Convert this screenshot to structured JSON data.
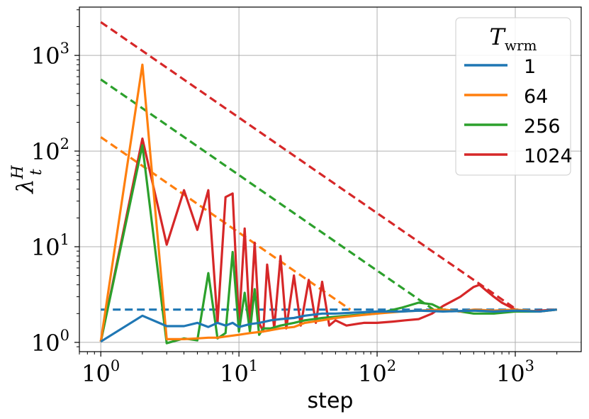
{
  "chart_data": {
    "type": "line",
    "xlabel": "step",
    "ylabel": "λ",
    "ylabel_sup": "H",
    "ylabel_sub": "t",
    "xscale": "log",
    "yscale": "log",
    "xlim": [
      0.7,
      3000
    ],
    "ylim": [
      0.8,
      3200
    ],
    "grid": true,
    "x_ticks": [
      {
        "base": "10",
        "exp": "0",
        "value": 1
      },
      {
        "base": "10",
        "exp": "1",
        "value": 10
      },
      {
        "base": "10",
        "exp": "2",
        "value": 100
      },
      {
        "base": "10",
        "exp": "3",
        "value": 1000
      }
    ],
    "y_ticks": [
      {
        "base": "10",
        "exp": "0",
        "value": 1
      },
      {
        "base": "10",
        "exp": "1",
        "value": 10
      },
      {
        "base": "10",
        "exp": "2",
        "value": 100
      },
      {
        "base": "10",
        "exp": "3",
        "value": 1000
      }
    ],
    "legend": {
      "title_main": "T",
      "title_sub": "wrm",
      "placement": "top-right"
    },
    "series": [
      {
        "name": "1",
        "color": "#1f77b4",
        "dashed": {
          "x": [
            1,
            2000
          ],
          "y": [
            2.2,
            2.2
          ]
        },
        "solid": {
          "x": [
            1,
            2,
            3,
            4,
            5,
            6,
            7,
            8,
            9,
            10,
            12,
            14,
            17,
            20,
            25,
            30,
            40,
            50,
            70,
            100,
            150,
            200,
            300,
            500,
            700,
            1000,
            1500,
            2000
          ],
          "y": [
            1.02,
            1.9,
            1.48,
            1.48,
            1.6,
            1.45,
            1.6,
            1.5,
            1.6,
            1.45,
            1.55,
            1.6,
            1.7,
            1.75,
            1.8,
            1.9,
            2.0,
            2.0,
            2.05,
            2.1,
            2.1,
            2.15,
            2.1,
            2.15,
            2.1,
            2.15,
            2.1,
            2.2
          ]
        }
      },
      {
        "name": "64",
        "color": "#ff7f0e",
        "dashed": {
          "x": [
            1,
            64
          ],
          "y": [
            140,
            2.2
          ]
        },
        "solid": {
          "x": [
            1,
            2,
            3,
            4,
            5,
            6,
            7,
            8,
            10,
            12,
            15,
            20,
            25,
            30,
            40,
            50,
            70,
            100,
            150,
            200,
            300,
            400,
            500,
            700,
            1000,
            1500,
            2000
          ],
          "y": [
            1.02,
            800,
            1.08,
            1.08,
            1.1,
            1.12,
            1.12,
            1.15,
            1.2,
            1.25,
            1.3,
            1.4,
            1.45,
            1.6,
            1.7,
            1.8,
            1.9,
            2.0,
            2.1,
            2.15,
            2.2,
            2.1,
            2.2,
            2.15,
            2.2,
            2.1,
            2.2
          ]
        }
      },
      {
        "name": "256",
        "color": "#2ca02c",
        "dashed": {
          "x": [
            1,
            256
          ],
          "y": [
            560,
            2.2
          ]
        },
        "solid": {
          "x": [
            1,
            2,
            3,
            4,
            5,
            6,
            7,
            8,
            9,
            10,
            11,
            12,
            13,
            14,
            15,
            17,
            20,
            25,
            30,
            40,
            60,
            100,
            150,
            200,
            250,
            300,
            400,
            500,
            700,
            1000,
            1500,
            2000
          ],
          "y": [
            1.02,
            115,
            0.98,
            1.1,
            1.05,
            5.3,
            1.1,
            1.25,
            8.8,
            1.3,
            3.3,
            1.3,
            3.6,
            1.2,
            1.4,
            1.4,
            1.5,
            1.6,
            1.7,
            1.8,
            1.9,
            2.0,
            2.3,
            2.6,
            2.5,
            2.2,
            2.1,
            2.0,
            2.0,
            2.1,
            2.1,
            2.2
          ]
        }
      },
      {
        "name": "1024",
        "color": "#d62728",
        "dashed": {
          "x": [
            1,
            1024
          ],
          "y": [
            2230,
            2.2
          ]
        },
        "solid": {
          "x": [
            1,
            2,
            3,
            4,
            5,
            6,
            7,
            8,
            9,
            10,
            11,
            12,
            13,
            14,
            15,
            16,
            18,
            20,
            22,
            25,
            28,
            32,
            36,
            40,
            45,
            50,
            60,
            80,
            100,
            130,
            160,
            200,
            250,
            300,
            350,
            400,
            450,
            500,
            550,
            600,
            700,
            800,
            1000,
            1200,
            1500,
            2000
          ],
          "y": [
            1.02,
            135,
            10.5,
            39,
            15,
            39,
            1.6,
            33,
            36,
            1.5,
            15.5,
            1.5,
            11,
            1.6,
            1.3,
            6.5,
            1.4,
            8,
            1.4,
            5,
            1.5,
            4.5,
            1.6,
            4.3,
            1.5,
            1.7,
            1.5,
            1.6,
            1.6,
            1.65,
            1.7,
            1.75,
            2.0,
            2.4,
            2.7,
            3.0,
            3.4,
            3.8,
            4.0,
            3.6,
            3.0,
            2.6,
            2.2,
            2.1,
            2.15,
            2.2
          ]
        }
      }
    ]
  }
}
